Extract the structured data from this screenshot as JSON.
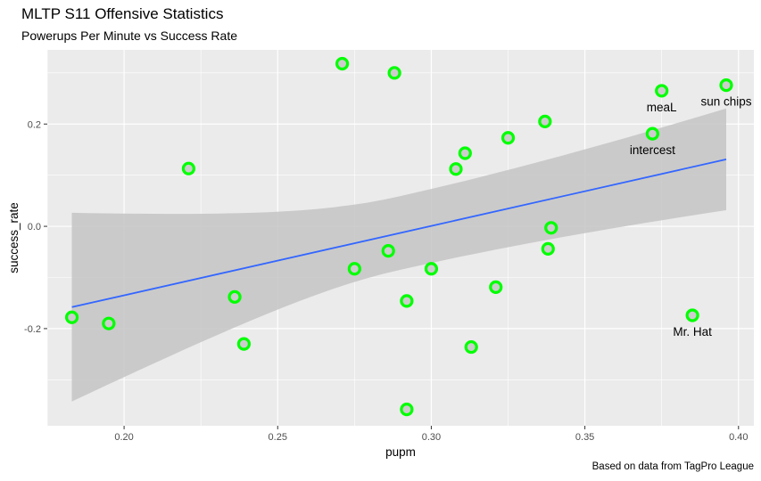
{
  "colors": {
    "panel_bg": "#ebebeb",
    "grid_major": "#ffffff",
    "point": "#00ff00",
    "point_fill": "#cccccc",
    "trend_line": "#3366ff",
    "ribbon": "#c4c4c4"
  },
  "chart_data": {
    "type": "scatter",
    "title": "MLTP S11 Offensive Statistics",
    "subtitle": "Powerups Per Minute vs Success Rate",
    "caption": "Based on data from TagPro League",
    "xlabel": "pupm",
    "ylabel": "success_rate",
    "xlim": [
      0.175,
      0.405
    ],
    "ylim": [
      -0.39,
      0.345
    ],
    "x_ticks": [
      0.2,
      0.25,
      0.3,
      0.35,
      0.4
    ],
    "x_tick_labels": [
      "0.20",
      "0.25",
      "0.30",
      "0.35",
      "0.40"
    ],
    "y_ticks": [
      -0.2,
      0.0,
      0.2
    ],
    "y_tick_labels": [
      "-0.2",
      "0.0",
      "0.2"
    ],
    "grid": true,
    "points": [
      {
        "x": 0.183,
        "y": -0.178,
        "label": ""
      },
      {
        "x": 0.195,
        "y": -0.19,
        "label": ""
      },
      {
        "x": 0.221,
        "y": 0.113,
        "label": ""
      },
      {
        "x": 0.236,
        "y": -0.138,
        "label": ""
      },
      {
        "x": 0.239,
        "y": -0.23,
        "label": ""
      },
      {
        "x": 0.271,
        "y": 0.318,
        "label": ""
      },
      {
        "x": 0.275,
        "y": -0.083,
        "label": ""
      },
      {
        "x": 0.286,
        "y": -0.048,
        "label": ""
      },
      {
        "x": 0.288,
        "y": 0.3,
        "label": ""
      },
      {
        "x": 0.292,
        "y": -0.146,
        "label": ""
      },
      {
        "x": 0.292,
        "y": -0.358,
        "label": ""
      },
      {
        "x": 0.3,
        "y": -0.083,
        "label": ""
      },
      {
        "x": 0.308,
        "y": 0.112,
        "label": ""
      },
      {
        "x": 0.311,
        "y": 0.143,
        "label": ""
      },
      {
        "x": 0.313,
        "y": -0.236,
        "label": ""
      },
      {
        "x": 0.321,
        "y": -0.119,
        "label": ""
      },
      {
        "x": 0.325,
        "y": 0.173,
        "label": ""
      },
      {
        "x": 0.337,
        "y": 0.205,
        "label": ""
      },
      {
        "x": 0.338,
        "y": -0.044,
        "label": ""
      },
      {
        "x": 0.339,
        "y": -0.003,
        "label": ""
      },
      {
        "x": 0.372,
        "y": 0.181,
        "label": "intercest"
      },
      {
        "x": 0.375,
        "y": 0.265,
        "label": "meaL"
      },
      {
        "x": 0.385,
        "y": -0.174,
        "label": "Mr. Hat"
      },
      {
        "x": 0.396,
        "y": 0.276,
        "label": "sun chips"
      }
    ],
    "trend": {
      "type": "linear",
      "x": [
        0.183,
        0.396
      ],
      "fit": [
        -0.158,
        0.131
      ],
      "lower": [
        -0.342,
        0.082
      ],
      "upper": [
        0.027,
        0.281
      ]
    }
  }
}
